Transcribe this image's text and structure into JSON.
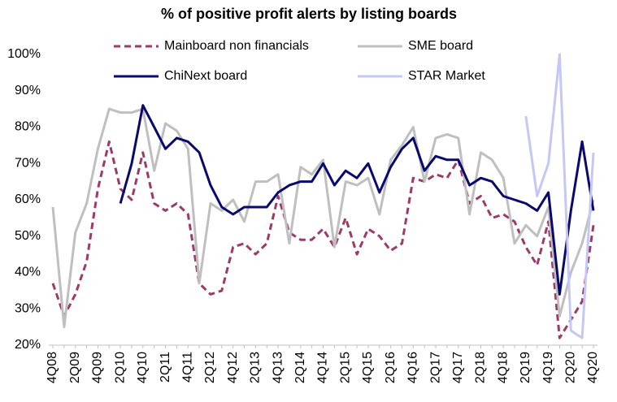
{
  "chart_data": {
    "type": "line",
    "title": "% of positive profit alerts by listing boards",
    "categories": [
      "4Q08",
      null,
      "2Q09",
      null,
      "4Q09",
      null,
      "2Q10",
      null,
      "4Q10",
      null,
      "2Q11",
      null,
      "4Q11",
      null,
      "2Q12",
      null,
      "4Q12",
      null,
      "2Q13",
      null,
      "4Q13",
      null,
      "2Q14",
      null,
      "4Q14",
      null,
      "2Q15",
      null,
      "4Q15",
      null,
      "2Q16",
      null,
      "4Q16",
      null,
      "2Q17",
      null,
      "4Q17",
      null,
      "2Q18",
      null,
      "4Q18",
      null,
      "2Q19",
      null,
      "4Q19",
      null,
      "2Q20",
      null,
      "4Q20"
    ],
    "series": [
      {
        "name": "Mainboard non financials",
        "color": "#9b3a6b",
        "dashed": true,
        "values": [
          37,
          28,
          34,
          43,
          63,
          76,
          63,
          60,
          73,
          59,
          57,
          59,
          56,
          37,
          34,
          35,
          47,
          48,
          45,
          48,
          61,
          51,
          49,
          49,
          52,
          47,
          55,
          45,
          52,
          50,
          46,
          48,
          66,
          65,
          67,
          66,
          71,
          59,
          61,
          55,
          56,
          54,
          47,
          42,
          54,
          22,
          27,
          32,
          53
        ]
      },
      {
        "name": "SME board",
        "color": "#bfbfbf",
        "dashed": false,
        "values": [
          58,
          25,
          51,
          59,
          74,
          85,
          84,
          84,
          85,
          68,
          81,
          79,
          74,
          37,
          59,
          57,
          60,
          54,
          65,
          65,
          67,
          48,
          69,
          67,
          71,
          47,
          65,
          64,
          66,
          56,
          71,
          75,
          80,
          65,
          77,
          78,
          77,
          56,
          73,
          71,
          66,
          48,
          53,
          50,
          58,
          28,
          40,
          48,
          60
        ]
      },
      {
        "name": "ChiNext board",
        "color": "#0a0a6e",
        "dashed": false,
        "values": [
          null,
          null,
          null,
          null,
          null,
          null,
          59,
          70,
          86,
          80,
          74,
          77,
          76,
          73,
          64,
          58,
          56,
          58,
          58,
          58,
          62,
          64,
          65,
          65,
          70,
          64,
          68,
          66,
          70,
          62,
          69,
          74,
          77,
          68,
          72,
          71,
          71,
          64,
          66,
          65,
          61,
          60,
          59,
          57,
          62,
          34,
          57,
          76,
          57
        ]
      },
      {
        "name": "STAR Market",
        "color": "#c5c8f5",
        "dashed": false,
        "values": [
          null,
          null,
          null,
          null,
          null,
          null,
          null,
          null,
          null,
          null,
          null,
          null,
          null,
          null,
          null,
          null,
          null,
          null,
          null,
          null,
          null,
          null,
          null,
          null,
          null,
          null,
          null,
          null,
          null,
          null,
          null,
          null,
          null,
          null,
          null,
          null,
          null,
          null,
          null,
          null,
          null,
          null,
          83,
          61,
          70,
          100,
          24,
          22,
          73
        ]
      }
    ],
    "ylim": [
      20,
      100
    ],
    "yticks": [
      {
        "value": 20,
        "label": "20%"
      },
      {
        "value": 30,
        "label": "30%"
      },
      {
        "value": 40,
        "label": "40%"
      },
      {
        "value": 50,
        "label": "50%"
      },
      {
        "value": 60,
        "label": "60%"
      },
      {
        "value": 70,
        "label": "70%"
      },
      {
        "value": 80,
        "label": "80%"
      },
      {
        "value": 90,
        "label": "90%"
      },
      {
        "value": 100,
        "label": "100%"
      }
    ],
    "grid": false
  }
}
